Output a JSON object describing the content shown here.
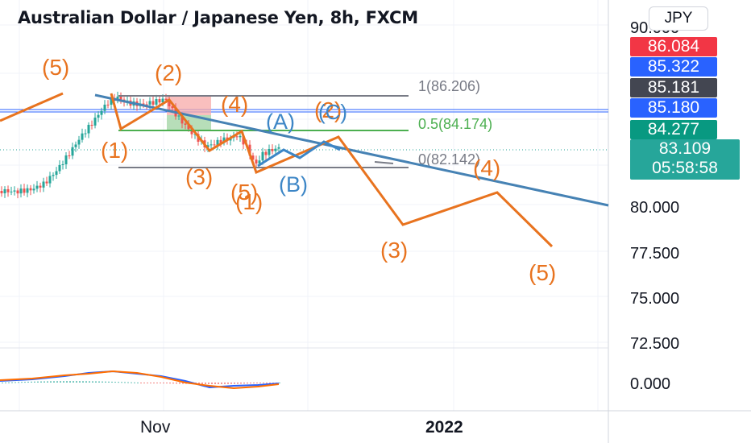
{
  "header": {
    "title": "Australian Dollar / Japanese Yen, 8h, FXCM",
    "currency": "JPY"
  },
  "price_tags": [
    {
      "value": "86.084",
      "color": "#f23645"
    },
    {
      "value": "85.322",
      "color": "#2962ff"
    },
    {
      "value": "85.181",
      "color": "#434651"
    },
    {
      "value": "85.180",
      "color": "#2962ff"
    },
    {
      "value": "84.277",
      "color": "#089981"
    }
  ],
  "current_price": {
    "value": "83.109",
    "countdown": "05:58:58",
    "color": "#26a69a"
  },
  "chart_data": {
    "type": "line",
    "y_ticks": [
      {
        "value": 90.0,
        "label": "90.000"
      },
      {
        "value": 80.0,
        "label": "80.000"
      },
      {
        "value": 77.5,
        "label": "77.500"
      },
      {
        "value": 75.0,
        "label": "75.000"
      },
      {
        "value": 72.5,
        "label": "72.500"
      }
    ],
    "x_ticks": [
      {
        "label": "Nov",
        "bold": false
      },
      {
        "label": "2022",
        "bold": true
      }
    ],
    "indicator_ticks": [
      {
        "value": 0.0,
        "label": "0.000"
      }
    ],
    "fib_levels": [
      {
        "ratio": 1,
        "price": 86.206,
        "label": "1(86.206)",
        "color": "#787b86"
      },
      {
        "ratio": 0.5,
        "price": 84.174,
        "label": "0.5(84.174)",
        "color": "#4caf50"
      },
      {
        "ratio": 0,
        "price": 82.142,
        "label": "0(82.142)",
        "color": "#787b86"
      }
    ],
    "wave_labels": [
      {
        "text": "(5)",
        "color": "#e8731f"
      },
      {
        "text": "(2)",
        "color": "#e8731f"
      },
      {
        "text": "(4)",
        "color": "#e8731f"
      },
      {
        "text": "(1)",
        "color": "#e8731f"
      },
      {
        "text": "(3)",
        "color": "#e8731f"
      },
      {
        "text": "(5)",
        "color": "#e8731f"
      },
      {
        "text": "(1)",
        "color": "#e8731f"
      },
      {
        "text": "(2)",
        "color": "#e8731f"
      },
      {
        "text": "(A)",
        "color": "#3d86c6"
      },
      {
        "text": "(B)",
        "color": "#3d86c6"
      },
      {
        "text": "(C)",
        "color": "#3d86c6"
      },
      {
        "text": "(4)",
        "color": "#e8731f"
      },
      {
        "text": "(3)",
        "color": "#e8731f"
      },
      {
        "text": "(5)",
        "color": "#e8731f"
      }
    ],
    "colors": {
      "up": "#26a69a",
      "down": "#ef5350",
      "wave": "#e8731f",
      "corrective": "#3d86c6",
      "trendline": "#4682b4"
    }
  }
}
